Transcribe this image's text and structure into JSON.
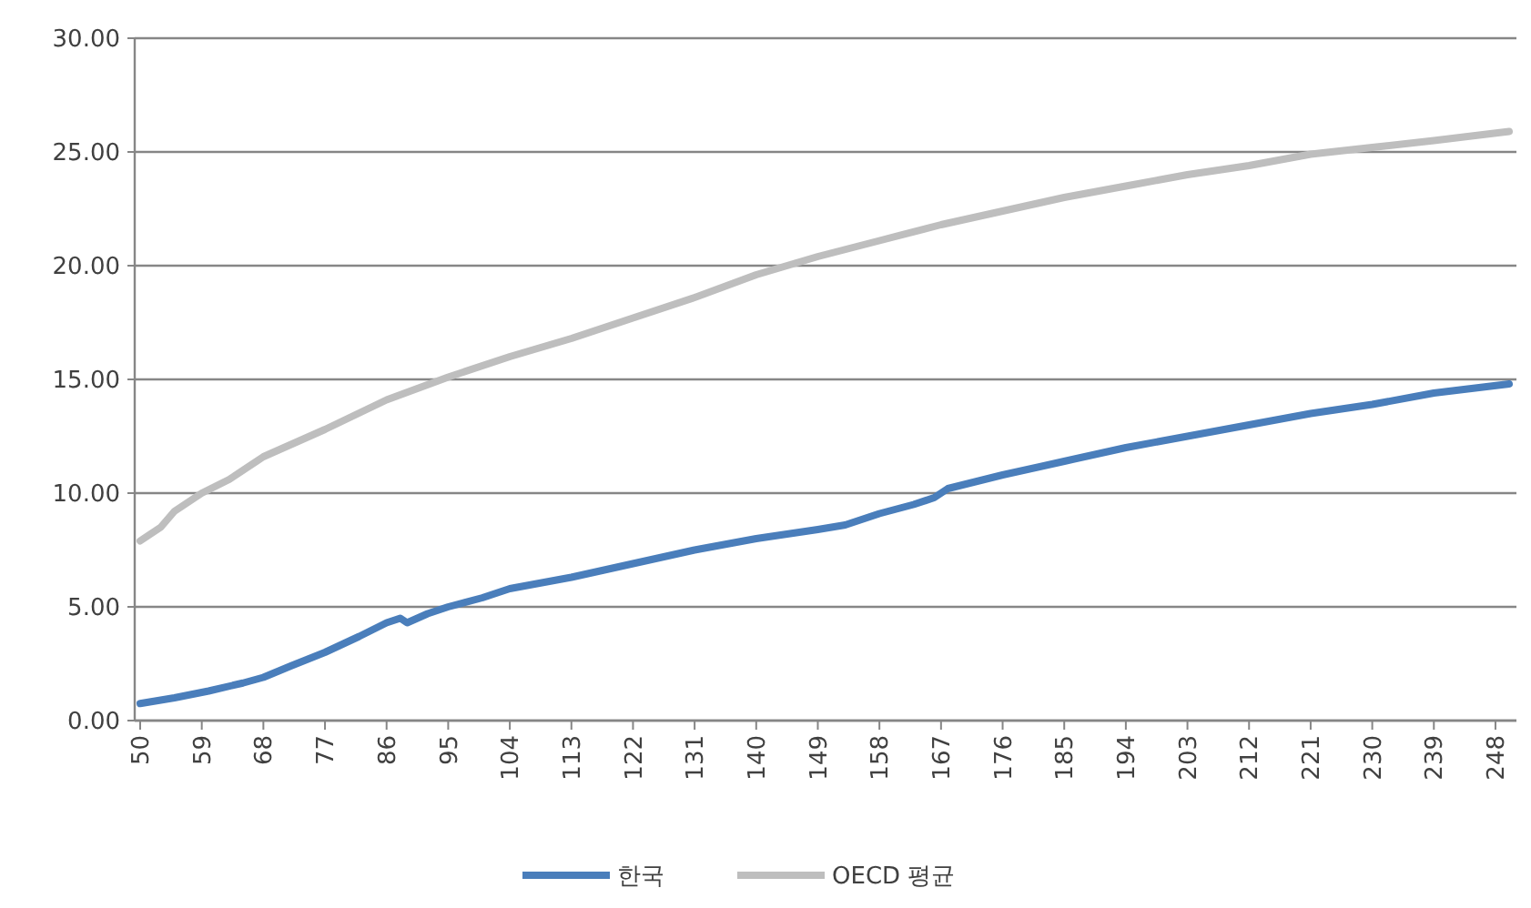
{
  "chart_data": {
    "type": "line",
    "xlim": [
      50,
      250
    ],
    "xticks": [
      50,
      59,
      68,
      77,
      86,
      95,
      104,
      113,
      122,
      131,
      140,
      149,
      158,
      167,
      176,
      185,
      194,
      203,
      212,
      221,
      230,
      239,
      248
    ],
    "ylim": [
      0,
      30
    ],
    "yticks": [
      {
        "value": 0,
        "label": "0.00"
      },
      {
        "value": 5,
        "label": "5.00"
      },
      {
        "value": 10,
        "label": "10.00"
      },
      {
        "value": 15,
        "label": "15.00"
      },
      {
        "value": 20,
        "label": "20.00"
      },
      {
        "value": 25,
        "label": "25.00"
      },
      {
        "value": 30,
        "label": "30.00"
      }
    ],
    "grid": "y",
    "legend": "bottom",
    "line_style": "solid",
    "marker": "none",
    "series": [
      {
        "name": "한국",
        "color": "#4a7ebb",
        "x": [
          50,
          55,
          60,
          65,
          68,
          72,
          77,
          82,
          86,
          88,
          89,
          92,
          95,
          100,
          104,
          113,
          122,
          131,
          140,
          149,
          153,
          158,
          163,
          166,
          168,
          176,
          185,
          194,
          203,
          212,
          221,
          230,
          239,
          250
        ],
        "values": [
          0.75,
          1.0,
          1.3,
          1.65,
          1.9,
          2.4,
          3.0,
          3.7,
          4.3,
          4.5,
          4.3,
          4.7,
          5.0,
          5.4,
          5.8,
          6.3,
          6.9,
          7.5,
          8.0,
          8.4,
          8.6,
          9.1,
          9.5,
          9.8,
          10.2,
          10.8,
          11.4,
          12.0,
          12.5,
          13.0,
          13.5,
          13.9,
          14.4,
          14.8
        ]
      },
      {
        "name": "OECD 평균",
        "color": "#bebebe",
        "x": [
          50,
          53,
          55,
          59,
          63,
          68,
          77,
          86,
          95,
          104,
          113,
          122,
          131,
          140,
          149,
          158,
          167,
          176,
          185,
          194,
          203,
          212,
          221,
          230,
          239,
          250
        ],
        "values": [
          7.9,
          8.5,
          9.2,
          10.0,
          10.6,
          11.6,
          12.8,
          14.1,
          15.1,
          16.0,
          16.8,
          17.7,
          18.6,
          19.6,
          20.4,
          21.1,
          21.8,
          22.4,
          23.0,
          23.5,
          24.0,
          24.4,
          24.9,
          25.2,
          25.5,
          25.9
        ]
      }
    ]
  }
}
